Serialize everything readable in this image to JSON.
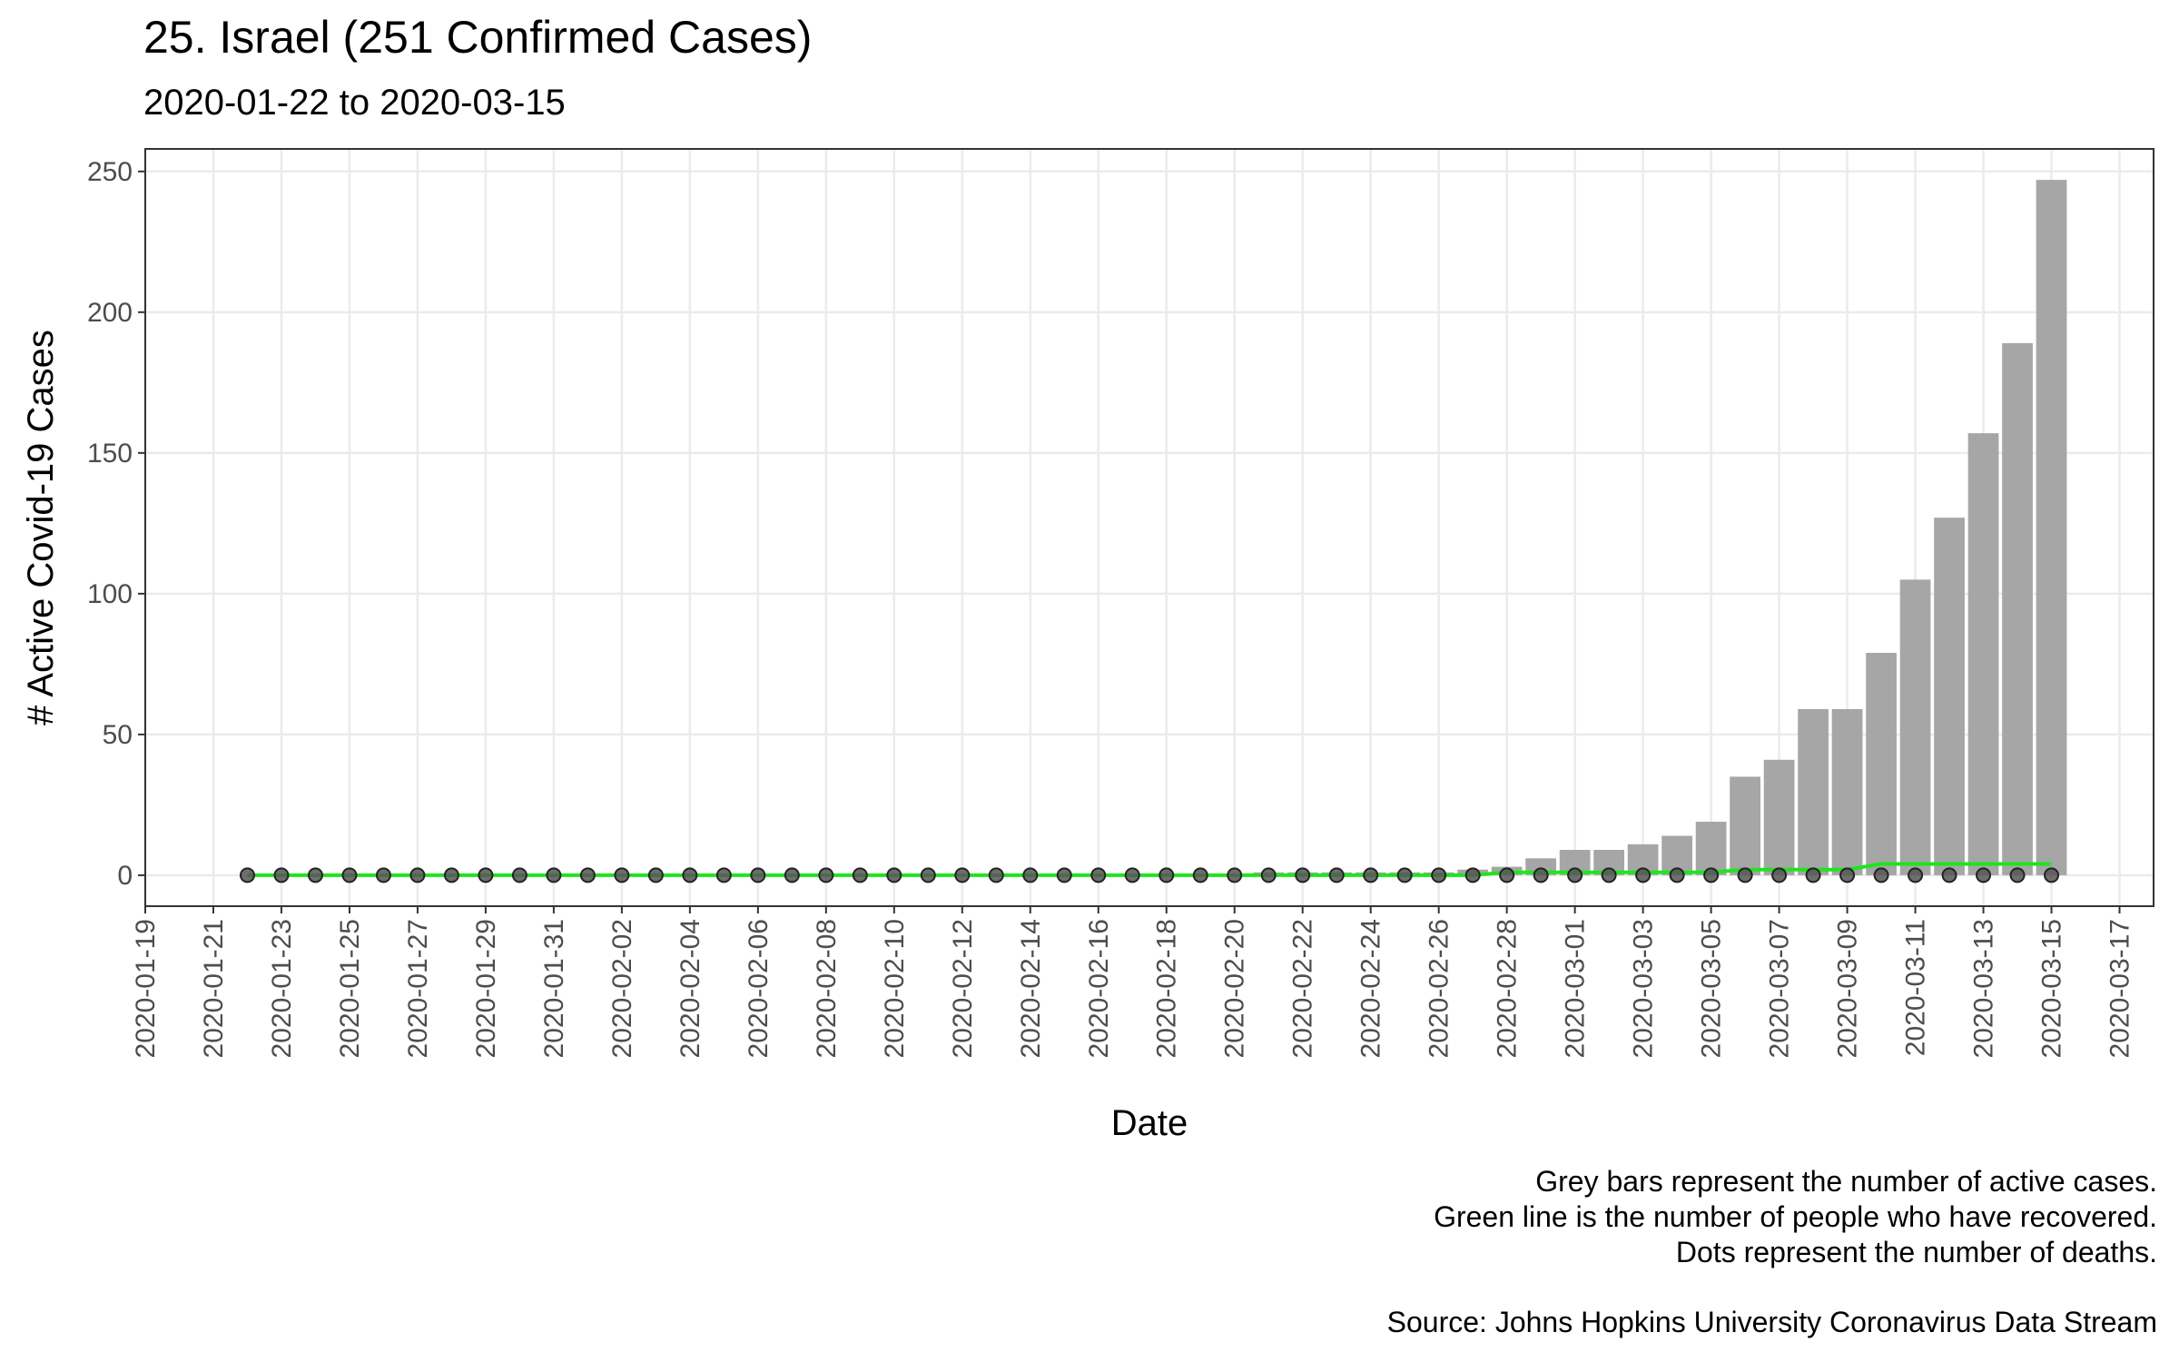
{
  "chart_data": {
    "type": "bar",
    "title": "25. Israel (251 Confirmed Cases)",
    "subtitle": "2020-01-22 to 2020-03-15",
    "x_label": "Date",
    "y_label": "# Active Covid-19 Cases",
    "caption": [
      "Grey bars represent the number of active cases.",
      "Green line is the number of people who have recovered.",
      "Dots represent the number of deaths.",
      "Source: Johns Hopkins University Coronavirus Data Stream"
    ],
    "x": [
      "2020-01-22",
      "2020-01-23",
      "2020-01-24",
      "2020-01-25",
      "2020-01-26",
      "2020-01-27",
      "2020-01-28",
      "2020-01-29",
      "2020-01-30",
      "2020-01-31",
      "2020-02-01",
      "2020-02-02",
      "2020-02-03",
      "2020-02-04",
      "2020-02-05",
      "2020-02-06",
      "2020-02-07",
      "2020-02-08",
      "2020-02-09",
      "2020-02-10",
      "2020-02-11",
      "2020-02-12",
      "2020-02-13",
      "2020-02-14",
      "2020-02-15",
      "2020-02-16",
      "2020-02-17",
      "2020-02-18",
      "2020-02-19",
      "2020-02-20",
      "2020-02-21",
      "2020-02-22",
      "2020-02-23",
      "2020-02-24",
      "2020-02-25",
      "2020-02-26",
      "2020-02-27",
      "2020-02-28",
      "2020-02-29",
      "2020-03-01",
      "2020-03-02",
      "2020-03-03",
      "2020-03-04",
      "2020-03-05",
      "2020-03-06",
      "2020-03-07",
      "2020-03-08",
      "2020-03-09",
      "2020-03-10",
      "2020-03-11",
      "2020-03-12",
      "2020-03-13",
      "2020-03-14",
      "2020-03-15"
    ],
    "series": [
      {
        "type": "bar",
        "color": "#a6a6a6",
        "values": [
          0,
          0,
          0,
          0,
          0,
          0,
          0,
          0,
          0,
          0,
          0,
          0,
          0,
          0,
          0,
          0,
          0,
          0,
          0,
          0,
          0,
          0,
          0,
          0,
          0,
          0,
          0,
          0,
          0,
          0,
          1,
          1,
          1,
          1,
          1,
          1,
          2,
          3,
          6,
          9,
          9,
          11,
          14,
          19,
          35,
          41,
          59,
          59,
          79,
          105,
          127,
          157,
          189,
          247
        ]
      },
      {
        "type": "line",
        "color": "#1ee51e",
        "values": [
          0,
          0,
          0,
          0,
          0,
          0,
          0,
          0,
          0,
          0,
          0,
          0,
          0,
          0,
          0,
          0,
          0,
          0,
          0,
          0,
          0,
          0,
          0,
          0,
          0,
          0,
          0,
          0,
          0,
          0,
          0,
          0,
          0,
          0,
          0,
          0,
          0,
          1,
          1,
          1,
          1,
          1,
          1,
          1,
          2,
          2,
          2,
          2,
          4,
          4,
          4,
          4,
          4,
          4
        ]
      },
      {
        "type": "scatter",
        "color": "#555555",
        "values": [
          0,
          0,
          0,
          0,
          0,
          0,
          0,
          0,
          0,
          0,
          0,
          0,
          0,
          0,
          0,
          0,
          0,
          0,
          0,
          0,
          0,
          0,
          0,
          0,
          0,
          0,
          0,
          0,
          0,
          0,
          0,
          0,
          0,
          0,
          0,
          0,
          0,
          0,
          0,
          0,
          0,
          0,
          0,
          0,
          0,
          0,
          0,
          0,
          0,
          0,
          0,
          0,
          0,
          0
        ]
      }
    ],
    "xlim": [
      "2020-01-19",
      "2020-03-18"
    ],
    "xticks": [
      "2020-01-19",
      "2020-01-21",
      "2020-01-23",
      "2020-01-25",
      "2020-01-27",
      "2020-01-29",
      "2020-01-31",
      "2020-02-02",
      "2020-02-04",
      "2020-02-06",
      "2020-02-08",
      "2020-02-10",
      "2020-02-12",
      "2020-02-14",
      "2020-02-16",
      "2020-02-18",
      "2020-02-20",
      "2020-02-22",
      "2020-02-24",
      "2020-02-26",
      "2020-02-28",
      "2020-03-01",
      "2020-03-03",
      "2020-03-05",
      "2020-03-07",
      "2020-03-09",
      "2020-03-11",
      "2020-03-13",
      "2020-03-15",
      "2020-03-17"
    ],
    "ylim": [
      -11,
      258
    ],
    "yticks": [
      0,
      50,
      100,
      150,
      200,
      250
    ],
    "grid": true
  }
}
